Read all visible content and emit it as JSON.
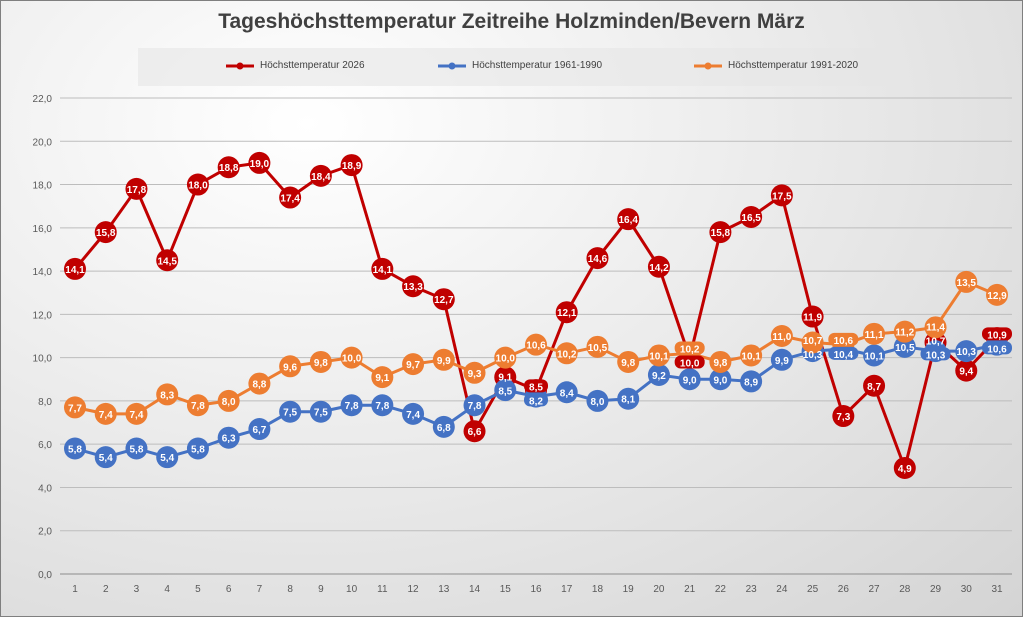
{
  "chart_data": {
    "type": "line",
    "title": "Tageshöchsttemperatur Zeitreihe Holzminden/Bevern März",
    "xlabel": "",
    "ylabel": "",
    "x": [
      1,
      2,
      3,
      4,
      5,
      6,
      7,
      8,
      9,
      10,
      11,
      12,
      13,
      14,
      15,
      16,
      17,
      18,
      19,
      20,
      21,
      22,
      23,
      24,
      25,
      26,
      27,
      28,
      29,
      30,
      31
    ],
    "ylim": [
      0,
      22
    ],
    "yticks": [
      "0,0",
      "2,0",
      "4,0",
      "6,0",
      "8,0",
      "10,0",
      "12,0",
      "14,0",
      "16,0",
      "18,0",
      "20,0",
      "22,0"
    ],
    "grid": true,
    "legend_position": "top",
    "series": [
      {
        "name": "Höchsttemperatur 2026",
        "color": "#c00000",
        "values": [
          14.1,
          15.8,
          17.8,
          14.5,
          18.0,
          18.8,
          19.0,
          17.4,
          18.4,
          18.9,
          14.1,
          13.3,
          12.7,
          6.6,
          9.1,
          8.5,
          12.1,
          14.6,
          16.4,
          14.2,
          10.0,
          15.8,
          16.5,
          17.5,
          11.9,
          7.3,
          8.7,
          4.9,
          10.7,
          9.4,
          10.9
        ]
      },
      {
        "name": "Höchsttemperatur 1961-1990",
        "color": "#4472c4",
        "values": [
          5.8,
          5.4,
          5.8,
          5.4,
          5.8,
          6.3,
          6.7,
          7.5,
          7.5,
          7.8,
          7.8,
          7.4,
          6.8,
          7.8,
          8.5,
          8.2,
          8.4,
          8.0,
          8.1,
          9.2,
          9.0,
          9.0,
          8.9,
          9.9,
          10.3,
          10.4,
          10.1,
          10.5,
          10.3,
          10.3,
          10.6
        ]
      },
      {
        "name": "Höchsttemperatur 1991-2020",
        "color": "#ed7d31",
        "values": [
          7.7,
          7.4,
          7.4,
          8.3,
          7.8,
          8.0,
          8.8,
          9.6,
          9.8,
          10.0,
          9.1,
          9.7,
          9.9,
          9.3,
          10.0,
          10.6,
          10.2,
          10.5,
          9.8,
          10.1,
          10.2,
          9.8,
          10.1,
          11.0,
          10.7,
          10.6,
          11.1,
          11.2,
          11.4,
          13.5,
          12.9
        ]
      }
    ]
  }
}
